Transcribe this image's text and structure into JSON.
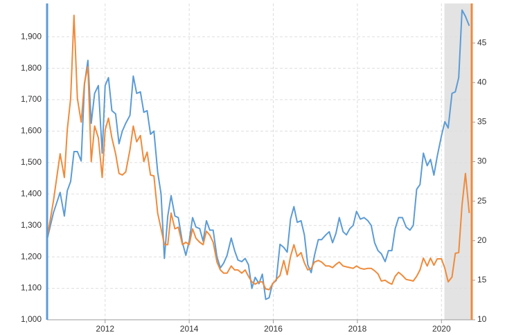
{
  "chart_data": {
    "type": "line",
    "x": [
      2010.62,
      2010.77,
      2010.93,
      2011.03,
      2011.1,
      2011.18,
      2011.26,
      2011.34,
      2011.43,
      2011.51,
      2011.59,
      2011.67,
      2011.75,
      2011.84,
      2011.93,
      2012.0,
      2012.08,
      2012.16,
      2012.25,
      2012.33,
      2012.41,
      2012.49,
      2012.59,
      2012.67,
      2012.75,
      2012.84,
      2012.92,
      2013.0,
      2013.08,
      2013.16,
      2013.25,
      2013.33,
      2013.41,
      2013.49,
      2013.57,
      2013.66,
      2013.74,
      2013.84,
      2013.92,
      2014.0,
      2014.08,
      2014.16,
      2014.25,
      2014.33,
      2014.41,
      2014.49,
      2014.57,
      2014.66,
      2014.74,
      2014.82,
      2014.9,
      2015.0,
      2015.08,
      2015.16,
      2015.25,
      2015.33,
      2015.41,
      2015.49,
      2015.57,
      2015.66,
      2015.74,
      2015.82,
      2015.9,
      2015.98,
      2016.07,
      2016.16,
      2016.25,
      2016.33,
      2016.41,
      2016.49,
      2016.57,
      2016.66,
      2016.74,
      2016.82,
      2016.9,
      2016.98,
      2017.07,
      2017.15,
      2017.25,
      2017.33,
      2017.41,
      2017.49,
      2017.57,
      2017.66,
      2017.74,
      2017.82,
      2017.9,
      2017.98,
      2018.07,
      2018.16,
      2018.25,
      2018.33,
      2018.41,
      2018.49,
      2018.57,
      2018.66,
      2018.74,
      2018.82,
      2018.9,
      2018.98,
      2019.07,
      2019.16,
      2019.25,
      2019.33,
      2019.41,
      2019.49,
      2019.57,
      2019.66,
      2019.74,
      2019.82,
      2019.9,
      2020.0,
      2020.08,
      2020.16,
      2020.25,
      2020.33,
      2020.41,
      2020.49,
      2020.57,
      2020.66
    ],
    "series": [
      {
        "color": "#5b9bd5",
        "values": [
          1255,
          1340,
          1405,
          1330,
          1410,
          1440,
          1535,
          1535,
          1505,
          1750,
          1825,
          1625,
          1720,
          1745,
          1530,
          1745,
          1770,
          1665,
          1655,
          1560,
          1600,
          1625,
          1650,
          1775,
          1720,
          1725,
          1660,
          1665,
          1590,
          1600,
          1470,
          1400,
          1195,
          1330,
          1395,
          1330,
          1325,
          1245,
          1205,
          1250,
          1325,
          1295,
          1290,
          1250,
          1315,
          1285,
          1285,
          1200,
          1165,
          1180,
          1205,
          1260,
          1220,
          1190,
          1185,
          1195,
          1175,
          1100,
          1135,
          1115,
          1145,
          1065,
          1070,
          1115,
          1125,
          1240,
          1230,
          1215,
          1320,
          1360,
          1310,
          1315,
          1270,
          1175,
          1150,
          1205,
          1255,
          1255,
          1270,
          1280,
          1245,
          1275,
          1325,
          1280,
          1270,
          1290,
          1300,
          1345,
          1320,
          1325,
          1315,
          1300,
          1245,
          1220,
          1210,
          1185,
          1220,
          1220,
          1290,
          1325,
          1325,
          1295,
          1285,
          1300,
          1415,
          1430,
          1530,
          1490,
          1510,
          1460,
          1520,
          1585,
          1630,
          1610,
          1720,
          1725,
          1770,
          1985,
          1965,
          1935
        ]
      },
      {
        "color": "#ef8a3a",
        "axis": "y2",
        "values": [
          20.3,
          25,
          31,
          28,
          34,
          38,
          48.5,
          38,
          35,
          40,
          42,
          30,
          34.5,
          33,
          28,
          34,
          35.5,
          33,
          31,
          28.5,
          28.3,
          28.7,
          31.5,
          34.5,
          32.5,
          33.3,
          30,
          31.2,
          28.3,
          28.2,
          23.5,
          21.5,
          19.5,
          19.5,
          23.5,
          21.5,
          21.7,
          19.5,
          19.8,
          19.5,
          21.5,
          20.3,
          19.8,
          19.5,
          21.2,
          20.7,
          19.8,
          17.3,
          16.3,
          15.9,
          15.9,
          16.8,
          16.3,
          16.3,
          15.9,
          16.3,
          15.5,
          14.8,
          14.5,
          14.8,
          14.8,
          13.9,
          13.8,
          14.5,
          15.1,
          15.6,
          17.5,
          15.7,
          18,
          19.5,
          18,
          18.5,
          17.2,
          16.3,
          16.5,
          17.3,
          17.5,
          17.3,
          16.8,
          16.8,
          16.6,
          17,
          17.3,
          16.8,
          16.7,
          16.6,
          16.5,
          16.8,
          16.5,
          16.4,
          16.5,
          16.5,
          16.2,
          15.8,
          14.9,
          15,
          14.7,
          14.5,
          15.5,
          16,
          15.6,
          15.1,
          15,
          14.9,
          15.5,
          16.3,
          17.8,
          16.8,
          17.8,
          16.9,
          17.7,
          17.7,
          16.5,
          14.8,
          15.4,
          18.4,
          18.5,
          24.5,
          28.5,
          23.5
        ]
      }
    ],
    "xlim": [
      2010.62,
      2020.72
    ],
    "xticks": [
      2012,
      2014,
      2016,
      2018,
      2020
    ],
    "ylim": [
      1000,
      2006
    ],
    "yticks": [
      {
        "value": 1000,
        "label": "1,000"
      },
      {
        "value": 1100,
        "label": "1,100"
      },
      {
        "value": 1200,
        "label": "1,200"
      },
      {
        "value": 1300,
        "label": "1,300"
      },
      {
        "value": 1400,
        "label": "1,400"
      },
      {
        "value": 1500,
        "label": "1,500"
      },
      {
        "value": 1600,
        "label": "1,600"
      },
      {
        "value": 1700,
        "label": "1,700"
      },
      {
        "value": 1800,
        "label": "1,800"
      },
      {
        "value": 1900,
        "label": "1,900"
      }
    ],
    "y2lim": [
      10,
      50
    ],
    "y2ticks": [
      10,
      15,
      20,
      25,
      30,
      35,
      40,
      45
    ],
    "shaded_range": [
      2020.07,
      2020.72
    ],
    "shade_color": "#e3e3e3",
    "grid": true
  }
}
